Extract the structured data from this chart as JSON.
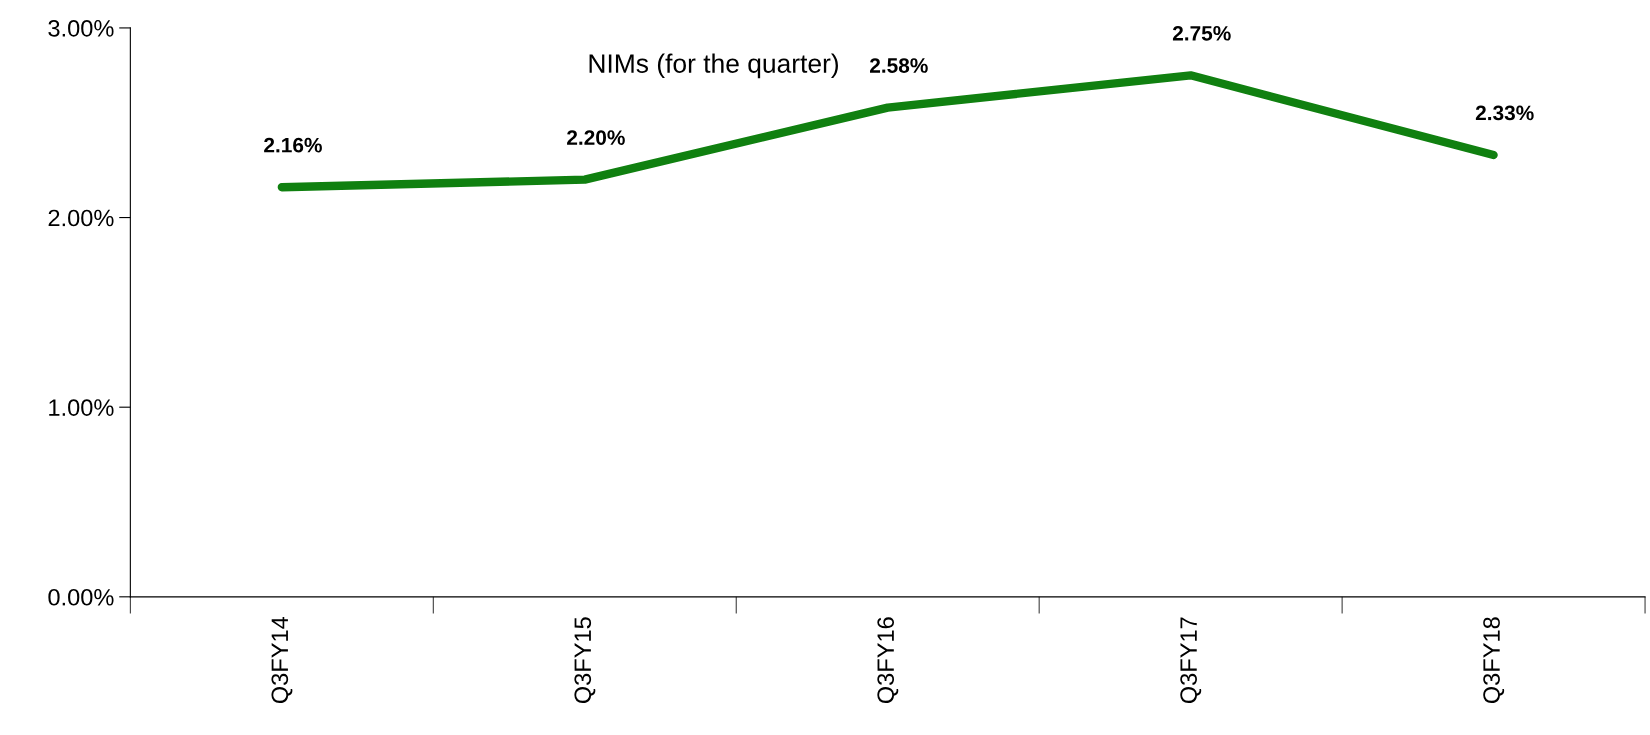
{
  "chart_data": {
    "type": "line",
    "title": "NIMs (for the quarter)",
    "categories": [
      "Q3FY14",
      "Q3FY15",
      "Q3FY16",
      "Q3FY17",
      "Q3FY18"
    ],
    "series": [
      {
        "color": "#108010",
        "values": [
          2.16,
          2.2,
          2.58,
          2.75,
          2.33
        ],
        "value_labels": [
          "2.16%",
          "2.20%",
          "2.58%",
          "2.75%",
          "2.33%"
        ]
      }
    ],
    "ylim": [
      0,
      3
    ],
    "yticks": [
      {
        "value": 0,
        "label": "0.00%"
      },
      {
        "value": 1,
        "label": "1.00%"
      },
      {
        "value": 2,
        "label": "2.00%"
      },
      {
        "value": 3,
        "label": "3.00%"
      }
    ],
    "grid": false,
    "legend": false,
    "marker": "none",
    "line_style": "solid"
  }
}
